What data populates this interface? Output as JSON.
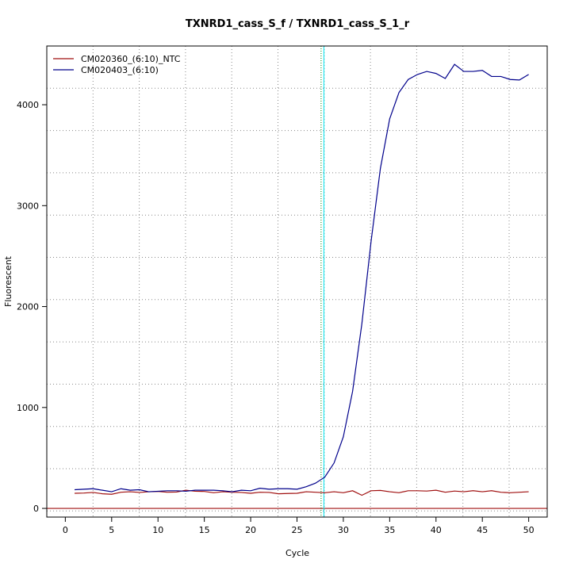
{
  "chart_data": {
    "type": "line",
    "title": "TXNRD1_cass_S_f / TXNRD1_cass_S_1_r",
    "x_label": "Cycle",
    "y_label": "Fluorescent",
    "x": [
      1,
      2,
      3,
      4,
      5,
      6,
      7,
      8,
      9,
      10,
      11,
      12,
      13,
      14,
      15,
      16,
      17,
      18,
      19,
      20,
      21,
      22,
      23,
      24,
      25,
      26,
      27,
      28,
      29,
      30,
      31,
      32,
      33,
      34,
      35,
      36,
      37,
      38,
      39,
      40,
      41,
      42,
      43,
      44,
      45,
      46,
      47,
      48,
      49,
      50
    ],
    "series": [
      {
        "name": "CM020360_(6:10)_NTC",
        "color": "#a01010",
        "values": [
          150,
          152,
          158,
          145,
          140,
          160,
          165,
          158,
          165,
          168,
          160,
          162,
          180,
          170,
          168,
          155,
          165,
          160,
          158,
          150,
          160,
          158,
          145,
          148,
          150,
          165,
          160,
          155,
          165,
          155,
          175,
          130,
          175,
          178,
          165,
          155,
          175,
          175,
          172,
          180,
          160,
          172,
          165,
          175,
          165,
          175,
          160,
          155,
          160,
          165
        ]
      },
      {
        "name": "CM020403_(6:10)",
        "color": "#00008b",
        "values": [
          185,
          190,
          195,
          180,
          165,
          195,
          180,
          185,
          165,
          170,
          175,
          175,
          170,
          180,
          180,
          180,
          175,
          165,
          180,
          175,
          200,
          190,
          195,
          195,
          190,
          215,
          250,
          310,
          450,
          710,
          1160,
          1830,
          2650,
          3370,
          3860,
          4120,
          4250,
          4300,
          4330,
          4310,
          4260,
          4400,
          4330,
          4330,
          4340,
          4280,
          4280,
          4250,
          4245,
          4300
        ]
      }
    ],
    "xlim": [
      -2,
      52
    ],
    "ylim": [
      -86,
      4582
    ],
    "xticks": [
      0,
      5,
      10,
      15,
      20,
      25,
      30,
      35,
      40,
      45,
      50
    ],
    "yticks": [
      0,
      1000,
      2000,
      3000,
      4000
    ],
    "grid": true,
    "legend": "top-left",
    "threshold": {
      "value": 0,
      "color": "#a01010"
    },
    "cycle_lines": [
      {
        "x": 27.6,
        "color": "#008000"
      },
      {
        "x": 27.9,
        "color": "#00e5ee"
      }
    ]
  }
}
